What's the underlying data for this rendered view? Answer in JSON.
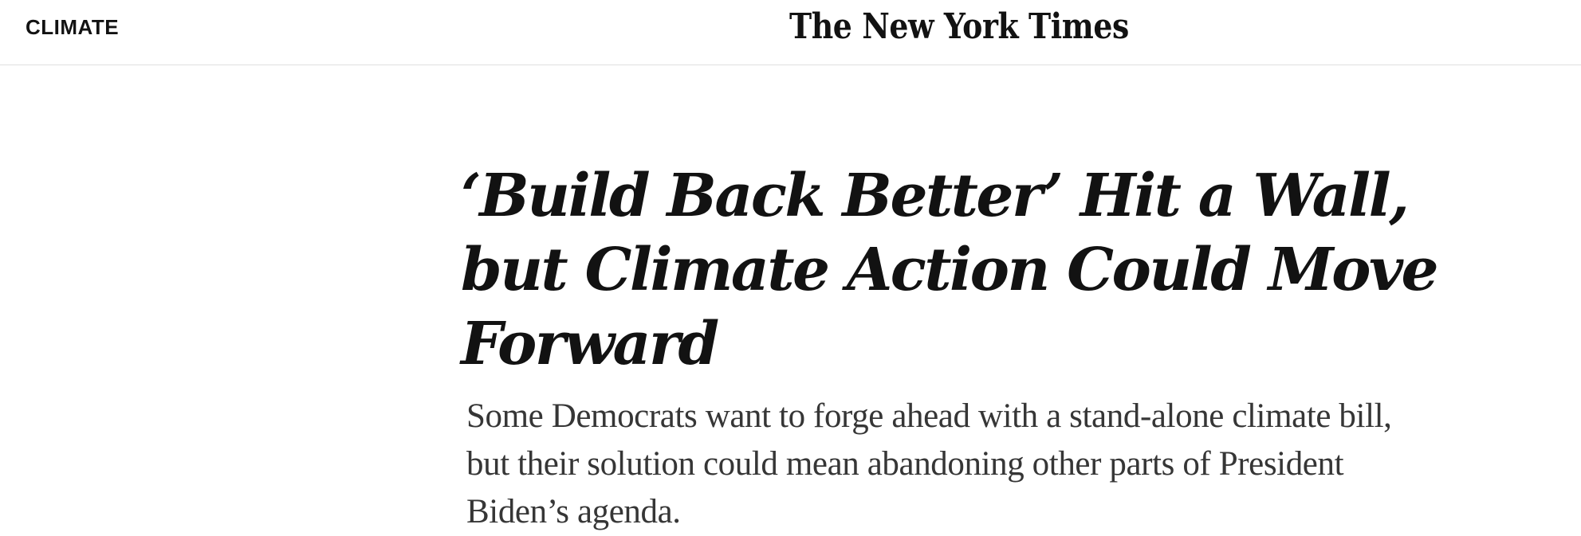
{
  "header": {
    "section_label": "CLIMATE",
    "logo_text": "The New York Times"
  },
  "article": {
    "headline": "‘Build Back Better’ Hit a Wall, but Climate Action Could Move Forward",
    "summary": "Some Democrats want to forge ahead with a stand-alone climate bill, but their solution could mean abandoning other parts of President Biden’s agenda."
  },
  "colors": {
    "text": "#121212",
    "summary_text": "#363636",
    "divider": "#dfdfdf",
    "background": "#ffffff"
  }
}
